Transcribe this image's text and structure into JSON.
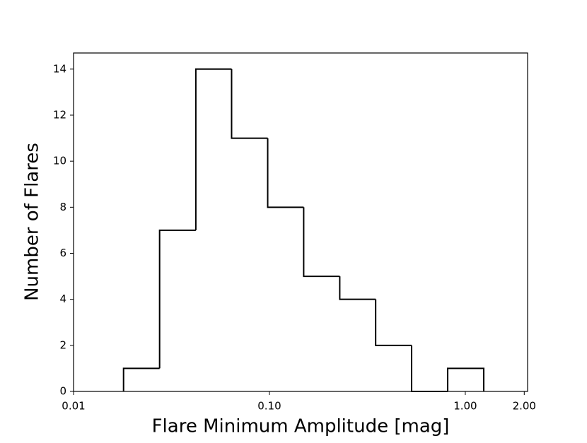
{
  "chart_data": {
    "type": "histogram",
    "xlabel": "Flare Minimum Amplitude [mag]",
    "ylabel": "Number of Flares",
    "bins": [
      0.018,
      0.0275,
      0.0421,
      0.0641,
      0.098,
      0.1496,
      0.2286,
      0.3486,
      0.532,
      0.813,
      1.242
    ],
    "values": [
      1,
      7,
      14,
      11,
      8,
      5,
      4,
      2,
      0,
      1
    ],
    "color": "#000000",
    "xscale": "log",
    "xlim": [
      0.01,
      2.08
    ],
    "xticks": [
      {
        "value": 0.01,
        "label": "0.01"
      },
      {
        "value": 0.1,
        "label": "0.10"
      },
      {
        "value": 1,
        "label": "1.00"
      },
      {
        "value": 2,
        "label": "2.00"
      }
    ],
    "ylim": [
      0,
      14.7
    ],
    "yticks": [
      0,
      2,
      4,
      6,
      8,
      10,
      12,
      14
    ]
  }
}
